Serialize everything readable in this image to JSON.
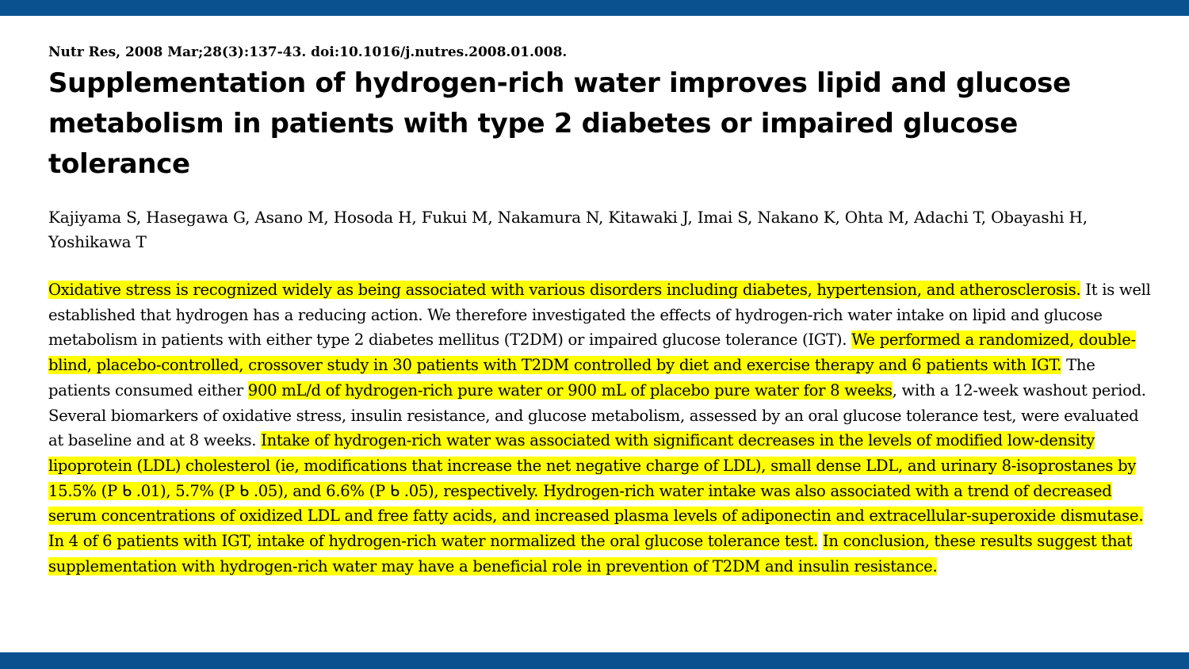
{
  "colors": {
    "band": "#0a5190",
    "highlight": "#ffff00",
    "text": "#000000",
    "background": "#ffffff"
  },
  "paper": {
    "citation": "Nutr Res, 2008 Mar;28(3):137-43. doi:10.1016/j.nutres.2008.01.008.",
    "title": "Supplementation of hydrogen-rich water improves lipid and glucose metabolism in patients with type 2 diabetes or impaired glucose tolerance",
    "authors": "Kajiyama S, Hasegawa G, Asano M, Hosoda H, Fukui M, Nakamura N, Kitawaki J, Imai S, Nakano K, Ohta M, Adachi T, Obayashi H, Yoshikawa T",
    "abstract": [
      {
        "text": "Oxidative stress is recognized widely as being associated with various disorders including diabetes, hypertension, and atherosclerosis.",
        "highlighted": true
      },
      {
        "text": " It is well established that hydrogen has a reducing action. We therefore investigated the effects of hydrogen-rich water intake on lipid and glucose metabolism in patients with either type 2 diabetes mellitus (T2DM) or impaired glucose tolerance (IGT). ",
        "highlighted": false
      },
      {
        "text": "We performed a randomized, double-blind, placebo-controlled, crossover study in 30 patients with T2DM controlled by diet and exercise therapy and 6 patients with IGT.",
        "highlighted": true
      },
      {
        "text": " The patients consumed either ",
        "highlighted": false
      },
      {
        "text": "900 mL/d of hydrogen-rich pure water or 900 mL of placebo pure water for 8 weeks",
        "highlighted": true
      },
      {
        "text": ", with a 12-week washout period. Several biomarkers of oxidative stress, insulin resistance, and glucose metabolism, assessed by an oral glucose tolerance test, were evaluated at baseline and at 8 weeks. ",
        "highlighted": false
      },
      {
        "text": "Intake of hydrogen-rich water was associated with significant decreases in the levels of modified low-density lipoprotein (LDL) cholesterol (ie, modifications that increase the net negative charge of LDL), small dense LDL, and urinary 8-isoprostanes by 15.5% (P ᑲ .01), 5.7% (P ᑲ .05), and 6.6% (P ᑲ .05), respectively. Hydrogen-rich water intake was also associated with a trend of decreased serum concentrations of oxidized LDL and free fatty acids, and increased plasma levels of adiponectin and extracellular-superoxide dismutase. In 4 of 6 patients with IGT, intake of hydrogen-rich water normalized the oral glucose tolerance test.",
        "highlighted": true
      },
      {
        "text": " ",
        "highlighted": false
      },
      {
        "text": "In conclusion, these results suggest that supplementation with hydrogen-rich water may have a beneficial role in prevention of T2DM and insulin resistance.",
        "highlighted": true
      }
    ]
  }
}
